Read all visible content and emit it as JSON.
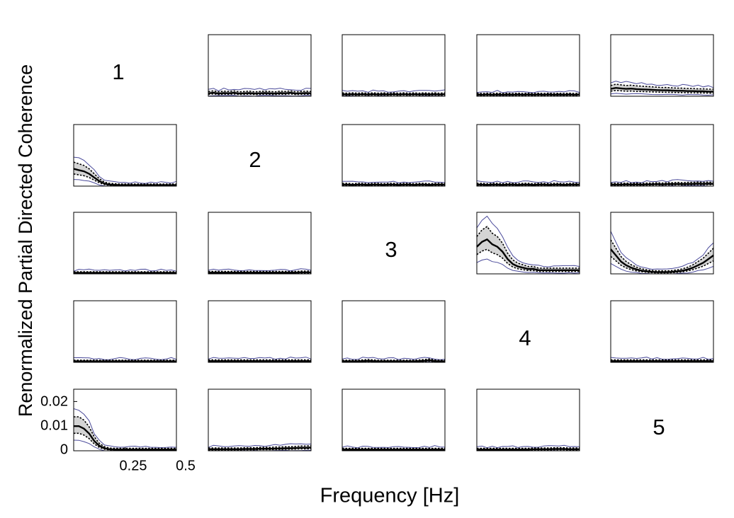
{
  "chart_data": {
    "type": "line",
    "title": "",
    "ylabel": "Renormalized Partial Directed Coherence",
    "xlabel": "Frequency [Hz]",
    "xlim": [
      0,
      0.5
    ],
    "ylim": [
      0,
      0.025
    ],
    "x_ticks": [
      0.25,
      0.5
    ],
    "x_tick_labels": [
      "0.25",
      "0.5"
    ],
    "y_ticks": [
      0,
      0.01,
      0.02
    ],
    "y_tick_labels": [
      "0",
      "0.01",
      "0.02"
    ],
    "grid": false,
    "legend": "none",
    "colors": {
      "mean": "#000000",
      "ci_bounds": "#000000",
      "band_fill": "#d4d4d4",
      "envelope": "#4a4a9a",
      "frame": "#000000"
    },
    "diagonal_labels": [
      "1",
      "2",
      "3",
      "4",
      "5"
    ],
    "freq": [
      0,
      0.025,
      0.05,
      0.075,
      0.1,
      0.125,
      0.15,
      0.175,
      0.2,
      0.225,
      0.25,
      0.275,
      0.3,
      0.325,
      0.35,
      0.375,
      0.4,
      0.425,
      0.45,
      0.475,
      0.5
    ],
    "panels": [
      {
        "row": 1,
        "col": 2,
        "mean": [
          0.0012,
          0.0014,
          0.0011,
          0.0013,
          0.0012,
          0.0014,
          0.0011,
          0.0012,
          0.0013,
          0.0011,
          0.0012,
          0.0013,
          0.0012,
          0.0011,
          0.0013,
          0.0012,
          0.0014,
          0.0011,
          0.0012,
          0.0013,
          0.0012
        ]
      },
      {
        "row": 1,
        "col": 3,
        "mean": [
          0.0008,
          0.0007,
          0.0008,
          0.0007,
          0.0008,
          0.0007,
          0.0008,
          0.0007,
          0.0008,
          0.0007,
          0.0008,
          0.0007,
          0.0008,
          0.0007,
          0.0008,
          0.0007,
          0.0008,
          0.0007,
          0.0008,
          0.0007,
          0.0008
        ]
      },
      {
        "row": 1,
        "col": 4,
        "mean": [
          0.0007,
          0.0006,
          0.0007,
          0.0006,
          0.0007,
          0.0006,
          0.0007,
          0.0006,
          0.0007,
          0.0006,
          0.0007,
          0.0006,
          0.0007,
          0.0006,
          0.0007,
          0.0006,
          0.0007,
          0.0006,
          0.0007,
          0.0006,
          0.0007
        ]
      },
      {
        "row": 1,
        "col": 5,
        "mean": [
          0.003,
          0.0034,
          0.0032,
          0.003,
          0.0031,
          0.0029,
          0.0028,
          0.0027,
          0.0026,
          0.0025,
          0.0024,
          0.0024,
          0.0023,
          0.0022,
          0.0022,
          0.0021,
          0.0021,
          0.002,
          0.002,
          0.0019,
          0.0019
        ]
      },
      {
        "row": 2,
        "col": 1,
        "mean": [
          0.007,
          0.0065,
          0.006,
          0.005,
          0.0035,
          0.002,
          0.001,
          0.0006,
          0.0005,
          0.0004,
          0.0004,
          0.0004,
          0.0004,
          0.0004,
          0.0004,
          0.0004,
          0.0004,
          0.0004,
          0.0004,
          0.0004,
          0.0004
        ]
      },
      {
        "row": 2,
        "col": 3,
        "mean": [
          0.0006,
          0.0006,
          0.0005,
          0.0006,
          0.0006,
          0.0005,
          0.0006,
          0.0006,
          0.0005,
          0.0006,
          0.0006,
          0.0005,
          0.0006,
          0.0006,
          0.0005,
          0.0006,
          0.0006,
          0.0005,
          0.0006,
          0.0006,
          0.0006
        ]
      },
      {
        "row": 2,
        "col": 4,
        "mean": [
          0.0006,
          0.0006,
          0.0005,
          0.0006,
          0.0006,
          0.0005,
          0.0006,
          0.0006,
          0.0005,
          0.0006,
          0.0006,
          0.0005,
          0.0006,
          0.0006,
          0.0005,
          0.0006,
          0.0006,
          0.0005,
          0.0006,
          0.0006,
          0.0006
        ]
      },
      {
        "row": 2,
        "col": 5,
        "mean": [
          0.0006,
          0.0006,
          0.0006,
          0.0007,
          0.0006,
          0.0007,
          0.0006,
          0.0007,
          0.0007,
          0.0008,
          0.0007,
          0.0008,
          0.0008,
          0.0009,
          0.0008,
          0.0009,
          0.0009,
          0.001,
          0.0009,
          0.001,
          0.0009
        ]
      },
      {
        "row": 3,
        "col": 1,
        "mean": [
          0.0004,
          0.0004,
          0.0004,
          0.0004,
          0.0004,
          0.0004,
          0.0004,
          0.0004,
          0.0004,
          0.0004,
          0.0004,
          0.0004,
          0.0004,
          0.0004,
          0.0004,
          0.0004,
          0.0004,
          0.0004,
          0.0004,
          0.0004,
          0.0004
        ]
      },
      {
        "row": 3,
        "col": 2,
        "mean": [
          0.0005,
          0.0005,
          0.0005,
          0.0005,
          0.0005,
          0.0005,
          0.0005,
          0.0005,
          0.0005,
          0.0005,
          0.0005,
          0.0005,
          0.0005,
          0.0005,
          0.0005,
          0.0005,
          0.0005,
          0.0005,
          0.0006,
          0.0006,
          0.0006
        ]
      },
      {
        "row": 3,
        "col": 4,
        "mean": [
          0.011,
          0.013,
          0.014,
          0.012,
          0.011,
          0.009,
          0.006,
          0.004,
          0.003,
          0.0025,
          0.002,
          0.002,
          0.0015,
          0.0015,
          0.0015,
          0.0015,
          0.0015,
          0.0015,
          0.0015,
          0.0015,
          0.0015
        ]
      },
      {
        "row": 3,
        "col": 5,
        "mean": [
          0.01,
          0.0075,
          0.005,
          0.0035,
          0.0025,
          0.0018,
          0.0013,
          0.001,
          0.0008,
          0.0007,
          0.0007,
          0.0007,
          0.0008,
          0.001,
          0.0013,
          0.0018,
          0.0025,
          0.0035,
          0.0045,
          0.006,
          0.0075
        ]
      },
      {
        "row": 4,
        "col": 1,
        "mean": [
          0.0004,
          0.0004,
          0.0004,
          0.0004,
          0.0004,
          0.0004,
          0.0004,
          0.0004,
          0.0004,
          0.0004,
          0.0004,
          0.0004,
          0.0004,
          0.0004,
          0.0004,
          0.0004,
          0.0004,
          0.0004,
          0.0004,
          0.0004,
          0.0004
        ]
      },
      {
        "row": 4,
        "col": 2,
        "mean": [
          0.0005,
          0.0005,
          0.0005,
          0.0005,
          0.0005,
          0.0005,
          0.0005,
          0.0005,
          0.0005,
          0.0005,
          0.0005,
          0.0005,
          0.0005,
          0.0005,
          0.0005,
          0.0005,
          0.0005,
          0.0005,
          0.0005,
          0.0005,
          0.0005
        ]
      },
      {
        "row": 4,
        "col": 3,
        "mean": [
          0.0004,
          0.0004,
          0.0004,
          0.0004,
          0.0005,
          0.0006,
          0.0005,
          0.0004,
          0.0004,
          0.0004,
          0.0004,
          0.0004,
          0.0004,
          0.0004,
          0.0004,
          0.0005,
          0.0006,
          0.0008,
          0.0005,
          0.0004,
          0.0004
        ]
      },
      {
        "row": 4,
        "col": 5,
        "mean": [
          0.0005,
          0.0005,
          0.0005,
          0.0005,
          0.0005,
          0.0005,
          0.0005,
          0.0005,
          0.0005,
          0.0005,
          0.0005,
          0.0005,
          0.0005,
          0.0005,
          0.0005,
          0.0005,
          0.0005,
          0.0005,
          0.0005,
          0.0005,
          0.0005
        ]
      },
      {
        "row": 5,
        "col": 1,
        "mean": [
          0.01,
          0.01,
          0.009,
          0.007,
          0.004,
          0.002,
          0.001,
          0.0006,
          0.0005,
          0.0005,
          0.0005,
          0.0005,
          0.0005,
          0.0005,
          0.0005,
          0.0005,
          0.0005,
          0.0005,
          0.0005,
          0.0005,
          0.0005
        ]
      },
      {
        "row": 5,
        "col": 2,
        "mean": [
          0.0006,
          0.0006,
          0.0006,
          0.0006,
          0.0006,
          0.0006,
          0.0006,
          0.0007,
          0.0007,
          0.0007,
          0.0008,
          0.0008,
          0.0008,
          0.0009,
          0.0009,
          0.001,
          0.001,
          0.0011,
          0.0012,
          0.0012,
          0.0013
        ]
      },
      {
        "row": 5,
        "col": 3,
        "mean": [
          0.0005,
          0.0005,
          0.0005,
          0.0005,
          0.0005,
          0.0005,
          0.0005,
          0.0005,
          0.0005,
          0.0005,
          0.0005,
          0.0005,
          0.0005,
          0.0005,
          0.0005,
          0.0005,
          0.0005,
          0.0005,
          0.0005,
          0.0005,
          0.0005
        ]
      },
      {
        "row": 5,
        "col": 4,
        "mean": [
          0.0005,
          0.0005,
          0.0005,
          0.0005,
          0.0005,
          0.0005,
          0.0005,
          0.0005,
          0.0005,
          0.0005,
          0.0005,
          0.0006,
          0.0006,
          0.0006,
          0.0006,
          0.0007,
          0.0007,
          0.0007,
          0.0006,
          0.0006,
          0.0006
        ]
      }
    ]
  }
}
